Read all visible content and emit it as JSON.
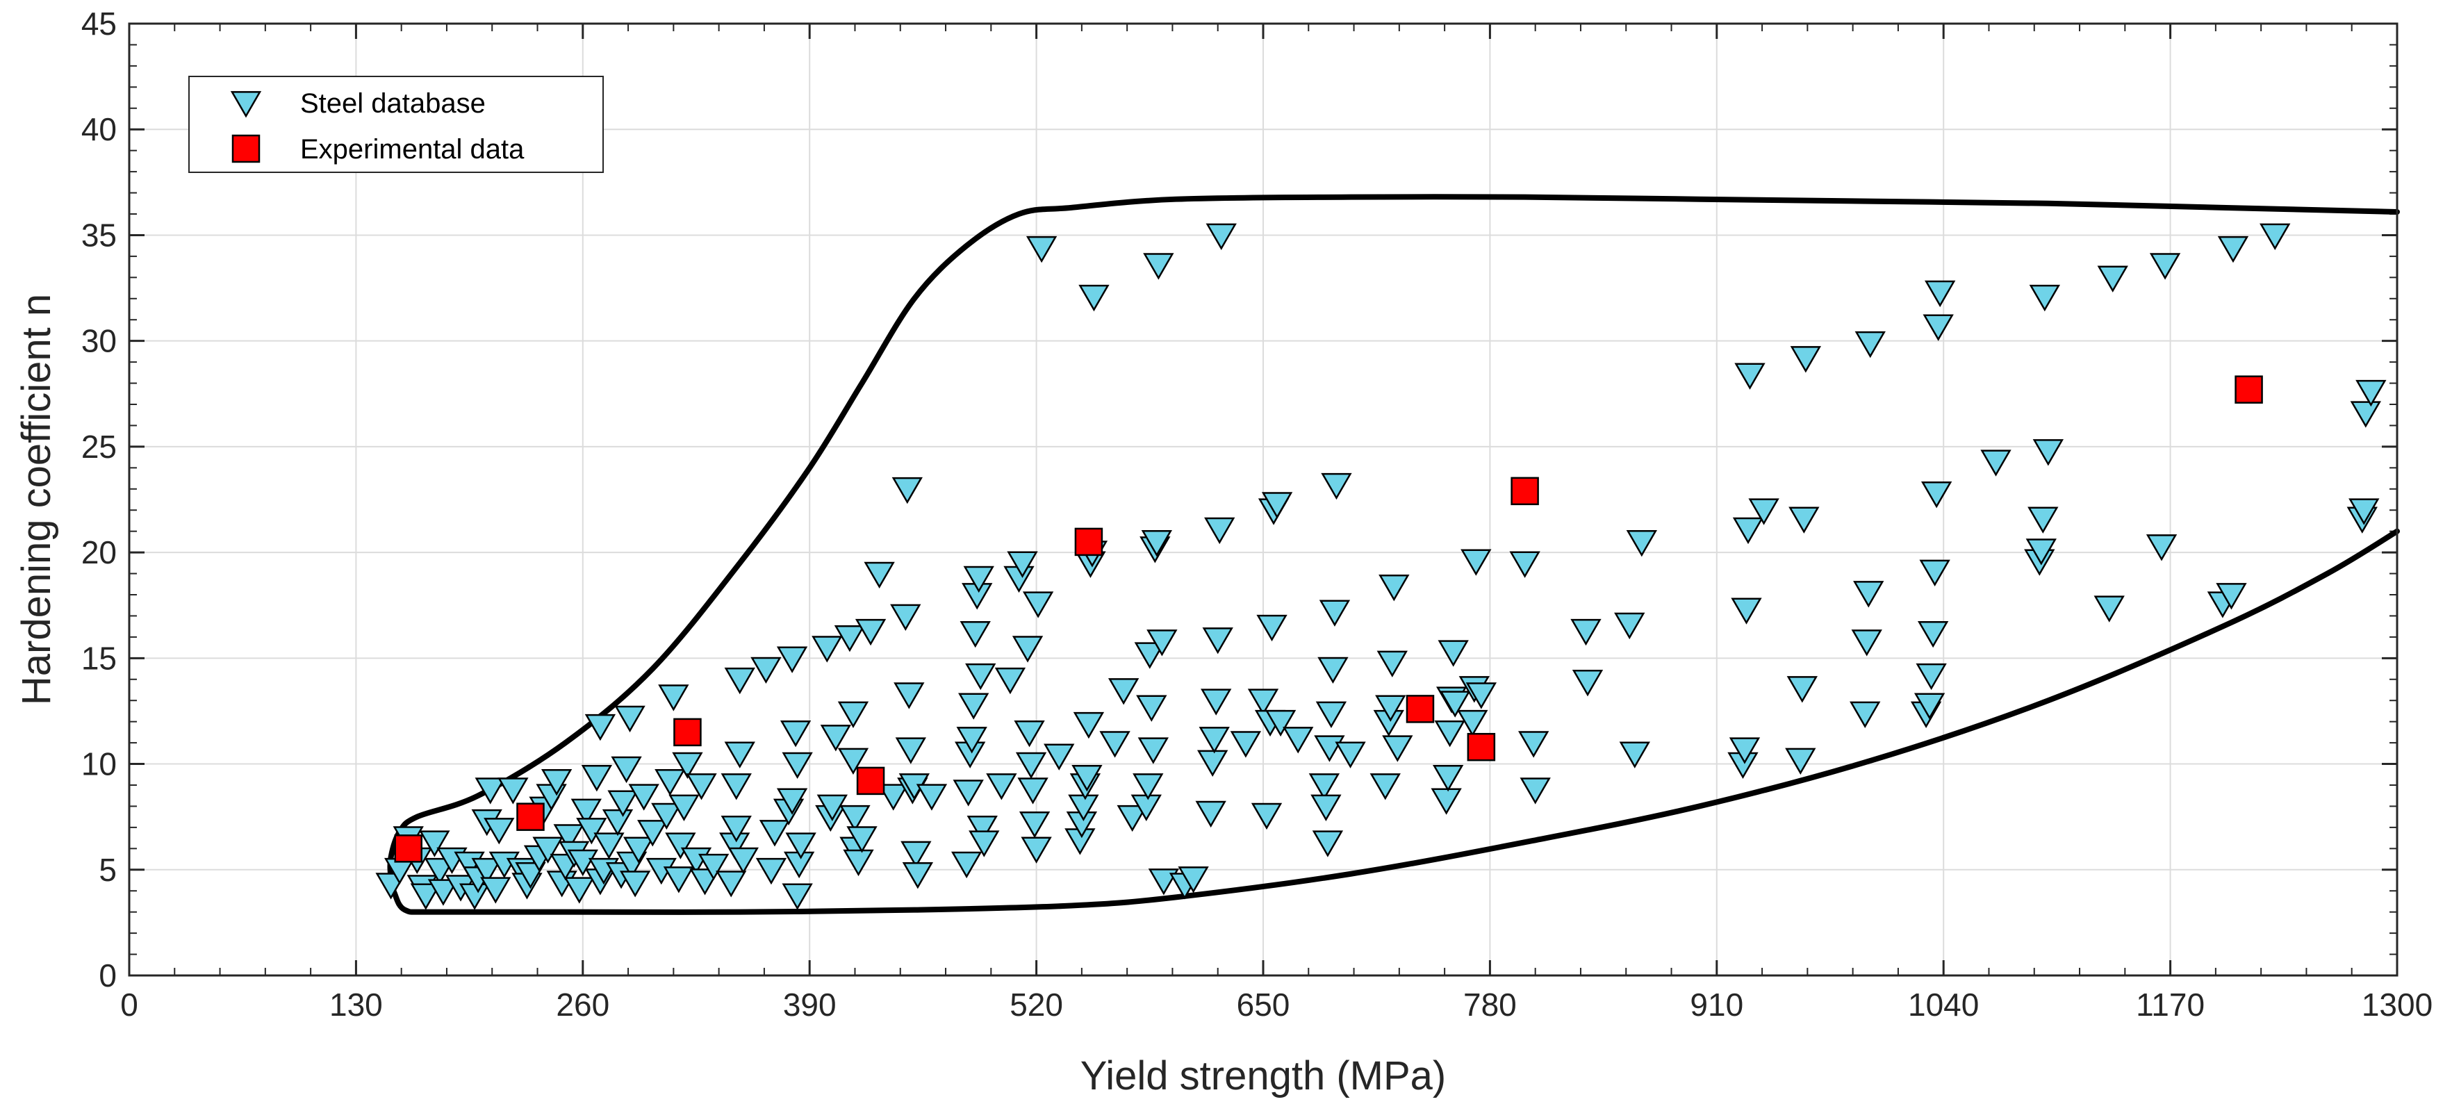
{
  "chart_data": {
    "type": "scatter",
    "xlabel": "Yield strength (MPa)",
    "ylabel": "Hardening coefficient n",
    "xlim": [
      0,
      1300
    ],
    "ylim": [
      0,
      45
    ],
    "xticks": [
      0,
      130,
      260,
      390,
      520,
      650,
      780,
      910,
      1040,
      1170,
      1300
    ],
    "yticks": [
      0,
      5,
      10,
      15,
      20,
      25,
      30,
      35,
      40,
      45
    ],
    "grid": true,
    "legend_position": "top-left",
    "colors": {
      "steel_fill": "#6FD3E8",
      "experimental_fill": "#FF0000",
      "envelope": "#000000",
      "grid": "#DCDCDC"
    },
    "series": [
      {
        "name": "Steel database",
        "marker": "triangle-down",
        "points": [
          [
            150,
            4.3
          ],
          [
            155,
            5.0
          ],
          [
            160,
            6.5
          ],
          [
            165,
            5.5
          ],
          [
            168,
            4.2
          ],
          [
            170,
            3.8
          ],
          [
            175,
            6.3
          ],
          [
            178,
            5.0
          ],
          [
            180,
            4.0
          ],
          [
            185,
            5.5
          ],
          [
            190,
            4.2
          ],
          [
            195,
            5.3
          ],
          [
            198,
            3.8
          ],
          [
            200,
            4.6
          ],
          [
            205,
            5.0
          ],
          [
            205,
            7.3
          ],
          [
            207,
            8.8
          ],
          [
            210,
            4.1
          ],
          [
            212,
            6.9
          ],
          [
            215,
            5.3
          ],
          [
            220,
            8.8
          ],
          [
            225,
            5.0
          ],
          [
            228,
            4.3
          ],
          [
            230,
            4.8
          ],
          [
            235,
            5.6
          ],
          [
            238,
            7.9
          ],
          [
            240,
            6.0
          ],
          [
            242,
            8.5
          ],
          [
            245,
            9.2
          ],
          [
            248,
            4.4
          ],
          [
            250,
            5.2
          ],
          [
            252,
            6.6
          ],
          [
            255,
            5.8
          ],
          [
            258,
            4.1
          ],
          [
            260,
            5.4
          ],
          [
            262,
            7.8
          ],
          [
            265,
            6.9
          ],
          [
            268,
            9.4
          ],
          [
            270,
            4.5
          ],
          [
            270,
            11.8
          ],
          [
            272,
            5.0
          ],
          [
            275,
            6.2
          ],
          [
            280,
            7.3
          ],
          [
            282,
            4.8
          ],
          [
            283,
            8.2
          ],
          [
            285,
            9.8
          ],
          [
            287,
            12.2
          ],
          [
            288,
            5.3
          ],
          [
            290,
            4.4
          ],
          [
            292,
            6.0
          ],
          [
            295,
            8.5
          ],
          [
            300,
            6.8
          ],
          [
            305,
            5.0
          ],
          [
            308,
            7.6
          ],
          [
            310,
            9.2
          ],
          [
            312,
            13.2
          ],
          [
            315,
            4.6
          ],
          [
            316,
            6.2
          ],
          [
            318,
            8.0
          ],
          [
            320,
            10.0
          ],
          [
            325,
            5.5
          ],
          [
            328,
            9.0
          ],
          [
            330,
            4.5
          ],
          [
            335,
            5.2
          ],
          [
            345,
            4.4
          ],
          [
            347,
            6.2
          ],
          [
            348,
            7.0
          ],
          [
            348,
            9.0
          ],
          [
            350,
            10.5
          ],
          [
            350,
            14.0
          ],
          [
            352,
            5.5
          ],
          [
            365,
            14.5
          ],
          [
            368,
            5.0
          ],
          [
            370,
            6.8
          ],
          [
            378,
            7.8
          ],
          [
            380,
            8.3
          ],
          [
            380,
            15.0
          ],
          [
            382,
            11.5
          ],
          [
            383,
            10.0
          ],
          [
            383,
            3.8
          ],
          [
            384,
            5.3
          ],
          [
            385,
            6.2
          ],
          [
            400,
            15.5
          ],
          [
            402,
            7.5
          ],
          [
            403,
            8.0
          ],
          [
            405,
            11.3
          ],
          [
            413,
            16.0
          ],
          [
            415,
            10.2
          ],
          [
            415,
            12.4
          ],
          [
            416,
            6.0
          ],
          [
            416,
            7.5
          ],
          [
            418,
            5.4
          ],
          [
            420,
            6.5
          ],
          [
            425,
            16.3
          ],
          [
            430,
            19.0
          ],
          [
            438,
            8.5
          ],
          [
            445,
            17.0
          ],
          [
            446,
            23.0
          ],
          [
            447,
            13.3
          ],
          [
            448,
            10.7
          ],
          [
            449,
            8.8
          ],
          [
            450,
            9.0
          ],
          [
            451,
            5.8
          ],
          [
            452,
            4.8
          ],
          [
            460,
            8.5
          ],
          [
            480,
            5.3
          ],
          [
            481,
            8.7
          ],
          [
            482,
            10.5
          ],
          [
            483,
            11.2
          ],
          [
            484,
            12.8
          ],
          [
            485,
            16.2
          ],
          [
            486,
            18.0
          ],
          [
            487,
            18.8
          ],
          [
            488,
            14.2
          ],
          [
            489,
            7.0
          ],
          [
            490,
            6.3
          ],
          [
            500,
            9.0
          ],
          [
            505,
            14.0
          ],
          [
            510,
            18.8
          ],
          [
            512,
            19.5
          ],
          [
            515,
            15.5
          ],
          [
            516,
            11.5
          ],
          [
            517,
            10.0
          ],
          [
            518,
            8.8
          ],
          [
            519,
            7.2
          ],
          [
            520,
            6.0
          ],
          [
            521,
            17.6
          ],
          [
            523,
            34.4
          ],
          [
            533,
            10.4
          ],
          [
            545,
            6.4
          ],
          [
            546,
            7.2
          ],
          [
            547,
            8.0
          ],
          [
            548,
            9.0
          ],
          [
            549,
            9.4
          ],
          [
            550,
            11.9
          ],
          [
            551,
            19.5
          ],
          [
            552,
            20.0
          ],
          [
            553,
            32.1
          ],
          [
            565,
            11.0
          ],
          [
            570,
            13.5
          ],
          [
            575,
            7.5
          ],
          [
            583,
            8.0
          ],
          [
            584,
            9.0
          ],
          [
            585,
            15.2
          ],
          [
            586,
            12.7
          ],
          [
            587,
            10.7
          ],
          [
            588,
            20.2
          ],
          [
            589,
            20.5
          ],
          [
            590,
            33.6
          ],
          [
            592,
            15.8
          ],
          [
            593,
            4.5
          ],
          [
            605,
            4.3
          ],
          [
            610,
            4.6
          ],
          [
            620,
            7.7
          ],
          [
            621,
            10.1
          ],
          [
            622,
            11.2
          ],
          [
            623,
            13.0
          ],
          [
            624,
            15.9
          ],
          [
            625,
            21.1
          ],
          [
            626,
            35.0
          ],
          [
            640,
            11.0
          ],
          [
            650,
            13.0
          ],
          [
            652,
            7.6
          ],
          [
            654,
            12.0
          ],
          [
            655,
            16.5
          ],
          [
            656,
            22.0
          ],
          [
            658,
            22.3
          ],
          [
            660,
            12.0
          ],
          [
            670,
            11.2
          ],
          [
            685,
            9.0
          ],
          [
            686,
            8.0
          ],
          [
            687,
            6.3
          ],
          [
            688,
            10.8
          ],
          [
            689,
            12.4
          ],
          [
            690,
            14.5
          ],
          [
            691,
            17.2
          ],
          [
            692,
            23.2
          ],
          [
            700,
            10.5
          ],
          [
            720,
            9.0
          ],
          [
            722,
            12.0
          ],
          [
            723,
            12.7
          ],
          [
            724,
            14.8
          ],
          [
            725,
            18.4
          ],
          [
            727,
            10.8
          ],
          [
            755,
            8.3
          ],
          [
            756,
            9.4
          ],
          [
            757,
            11.5
          ],
          [
            758,
            13.1
          ],
          [
            759,
            15.3
          ],
          [
            760,
            12.9
          ],
          [
            770,
            12.0
          ],
          [
            771,
            13.6
          ],
          [
            772,
            19.6
          ],
          [
            775,
            13.3
          ],
          [
            800,
            19.5
          ],
          [
            805,
            11.0
          ],
          [
            806,
            8.8
          ],
          [
            835,
            16.3
          ],
          [
            836,
            13.9
          ],
          [
            860,
            16.6
          ],
          [
            863,
            10.5
          ],
          [
            867,
            20.5
          ],
          [
            925,
            10.0
          ],
          [
            926,
            10.7
          ],
          [
            927,
            17.3
          ],
          [
            928,
            21.1
          ],
          [
            929,
            28.4
          ],
          [
            937,
            22.0
          ],
          [
            958,
            10.2
          ],
          [
            959,
            13.6
          ],
          [
            960,
            21.6
          ],
          [
            961,
            29.2
          ],
          [
            995,
            12.4
          ],
          [
            996,
            15.8
          ],
          [
            997,
            18.1
          ],
          [
            998,
            29.9
          ],
          [
            1030,
            12.4
          ],
          [
            1032,
            12.8
          ],
          [
            1033,
            14.2
          ],
          [
            1034,
            16.2
          ],
          [
            1035,
            19.1
          ],
          [
            1036,
            22.8
          ],
          [
            1037,
            30.7
          ],
          [
            1038,
            32.3
          ],
          [
            1070,
            24.3
          ],
          [
            1095,
            19.6
          ],
          [
            1096,
            20.1
          ],
          [
            1097,
            21.6
          ],
          [
            1098,
            32.1
          ],
          [
            1100,
            24.8
          ],
          [
            1135,
            17.4
          ],
          [
            1137,
            33.0
          ],
          [
            1165,
            20.3
          ],
          [
            1167,
            33.6
          ],
          [
            1200,
            17.6
          ],
          [
            1205,
            18.0
          ],
          [
            1206,
            34.4
          ],
          [
            1230,
            35.0
          ],
          [
            1280,
            21.6
          ],
          [
            1281,
            22.0
          ],
          [
            1282,
            26.6
          ],
          [
            1285,
            27.6
          ]
        ]
      },
      {
        "name": "Experimental data",
        "marker": "square",
        "points": [
          [
            160,
            6.0
          ],
          [
            230,
            7.5
          ],
          [
            320,
            11.5
          ],
          [
            425,
            9.2
          ],
          [
            550,
            20.5
          ],
          [
            740,
            12.6
          ],
          [
            775,
            10.8
          ],
          [
            800,
            22.9
          ],
          [
            1215,
            27.7
          ]
        ]
      }
    ],
    "envelope": [
      [
        1300,
        36.1
      ],
      [
        1200,
        36.3
      ],
      [
        1100,
        36.5
      ],
      [
        1000,
        36.6
      ],
      [
        900,
        36.7
      ],
      [
        800,
        36.8
      ],
      [
        700,
        36.8
      ],
      [
        600,
        36.7
      ],
      [
        540,
        36.3
      ],
      [
        510,
        36.0
      ],
      [
        480,
        34.5
      ],
      [
        450,
        32.0
      ],
      [
        420,
        28.0
      ],
      [
        390,
        24.0
      ],
      [
        350,
        19.5
      ],
      [
        300,
        14.5
      ],
      [
        250,
        11.0
      ],
      [
        200,
        8.5
      ],
      [
        165,
        7.5
      ],
      [
        155,
        6.8
      ],
      [
        150,
        5.6
      ],
      [
        150,
        4.6
      ],
      [
        152,
        3.9
      ],
      [
        158,
        3.1
      ],
      [
        175,
        3.0
      ],
      [
        250,
        3.0
      ],
      [
        350,
        3.0
      ],
      [
        450,
        3.1
      ],
      [
        540,
        3.3
      ],
      [
        600,
        3.7
      ],
      [
        700,
        4.8
      ],
      [
        800,
        6.3
      ],
      [
        900,
        8.0
      ],
      [
        1000,
        10.2
      ],
      [
        1100,
        13.0
      ],
      [
        1200,
        16.5
      ],
      [
        1260,
        19.0
      ],
      [
        1300,
        21.0
      ]
    ]
  }
}
